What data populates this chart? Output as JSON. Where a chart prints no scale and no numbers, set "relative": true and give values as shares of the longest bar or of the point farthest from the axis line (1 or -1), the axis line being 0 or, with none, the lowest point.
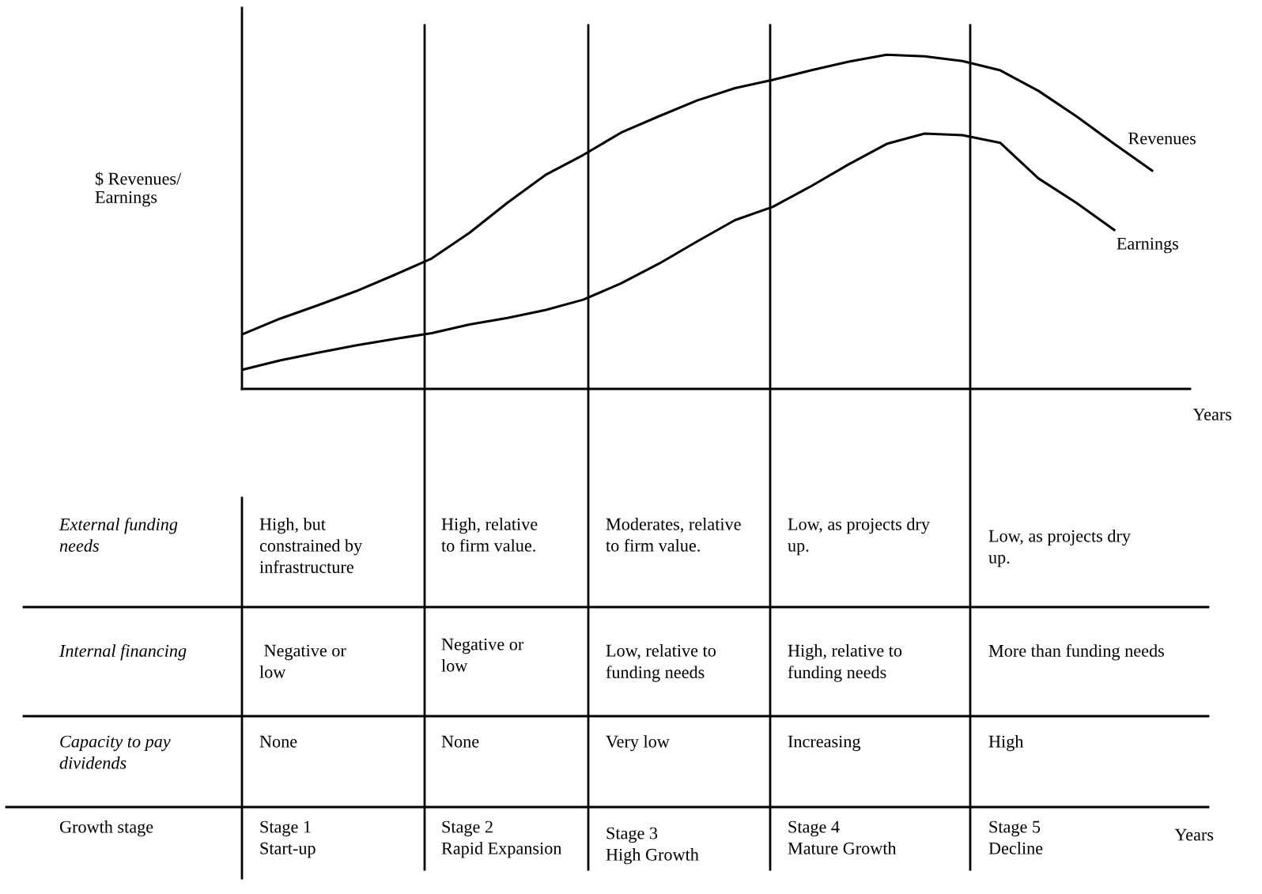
{
  "chart_data": {
    "type": "line",
    "relative": true,
    "legend": false,
    "marker": "none",
    "line_style": "solid",
    "xlabel": "Years",
    "ylabel": "$ Revenues/\nEarnings",
    "categories": [
      null,
      null,
      null,
      null,
      null,
      null,
      null,
      null,
      null,
      null,
      null,
      null,
      null,
      null,
      null,
      null,
      null,
      null,
      null,
      null,
      null,
      null,
      null,
      null,
      null,
      null
    ],
    "series": [
      {
        "name": "Revenues",
        "color": "#000000",
        "values": [
          0.163,
          0.21,
          0.25,
          0.292,
          0.34,
          0.39,
          0.467,
          0.557,
          0.64,
          0.7,
          0.767,
          0.816,
          0.863,
          0.9,
          0.925,
          0.953,
          0.979,
          1.0,
          0.995,
          0.981,
          0.953,
          0.892,
          0.816,
          0.733,
          0.653,
          null
        ]
      },
      {
        "name": "Earnings",
        "color": "#000000",
        "values": [
          0.057,
          0.085,
          0.108,
          0.13,
          0.149,
          0.167,
          0.193,
          0.212,
          0.236,
          0.267,
          0.316,
          0.375,
          0.441,
          0.505,
          0.545,
          0.606,
          0.672,
          0.733,
          0.764,
          0.759,
          0.736,
          0.63,
          0.557,
          0.476,
          null,
          null
        ]
      }
    ],
    "annotations": [
      "External funding\nneeds",
      "High, but\nconstrained by\ninfrastructure",
      "High, relative\nto firm value.",
      "Moderates, relative\nto firm value.",
      "Low, as projects dry\nup.",
      "Low, as projects dry\nup.",
      "Internal financing",
      " Negative or\nlow",
      "Negative or\nlow",
      "Low, relative to\nfunding needs",
      "High, relative to\nfunding needs",
      "More than funding needs",
      "Capacity to pay\ndividends",
      "None",
      "None",
      "Very low",
      "Increasing",
      "High",
      "Growth stage",
      "Stage 1\nStart-up",
      "Stage 2\nRapid Expansion",
      "Stage 3\nHigh Growth",
      "Stage 4\nMature Growth",
      "Stage 5\nDecline",
      "Years"
    ]
  }
}
